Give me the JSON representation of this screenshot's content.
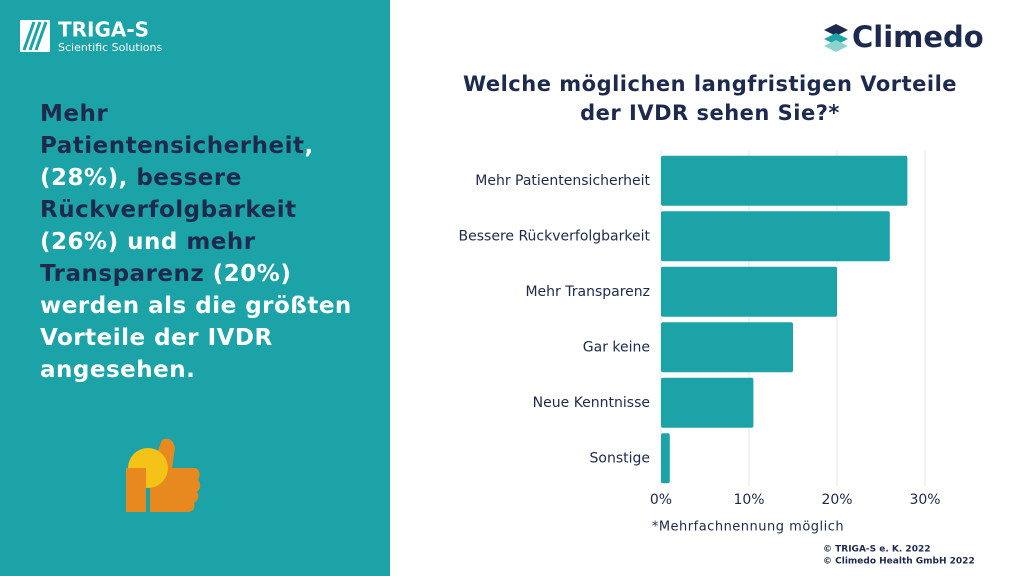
{
  "header": {
    "brand": "TRIGA-S",
    "brand_sub": "Scientific Solutions",
    "partner": "Climedo"
  },
  "summary": [
    {
      "text": "Mehr Patientensicherheit",
      "highlight": true
    },
    {
      "text": ", (28%), ",
      "highlight": false
    },
    {
      "text": "bessere Rückverfolgbarkeit",
      "highlight": true
    },
    {
      "text": " (26%) und ",
      "highlight": false
    },
    {
      "text": "mehr Transparenz",
      "highlight": true
    },
    {
      "text": " (20%) werden als die größten Vorteile der IVDR angesehen.",
      "highlight": false
    }
  ],
  "chart_data": {
    "type": "bar",
    "orientation": "horizontal",
    "title": "Welche möglichen langfristigen Vorteile der IVDR sehen Sie?*",
    "categories": [
      "Mehr Patientensicherheit",
      "Bessere Rückverfolgbarkeit",
      "Mehr Transparenz",
      "Gar keine",
      "Neue Kenntnisse",
      "Sonstige"
    ],
    "values": [
      28,
      26,
      20,
      15,
      10.5,
      1
    ],
    "color": "#1ba3a8",
    "xlim": [
      0,
      30
    ],
    "xticks": [
      {
        "value": 0,
        "label": "0%"
      },
      {
        "value": 10,
        "label": "10%"
      },
      {
        "value": 20,
        "label": "20%"
      },
      {
        "value": 30,
        "label": "30%"
      }
    ],
    "grid": true,
    "note": "*Mehrfachnennung möglich"
  },
  "footer": {
    "copyright": [
      "© TRIGA-S e. K. 2022",
      "© Climedo Health GmbH 2022"
    ]
  }
}
